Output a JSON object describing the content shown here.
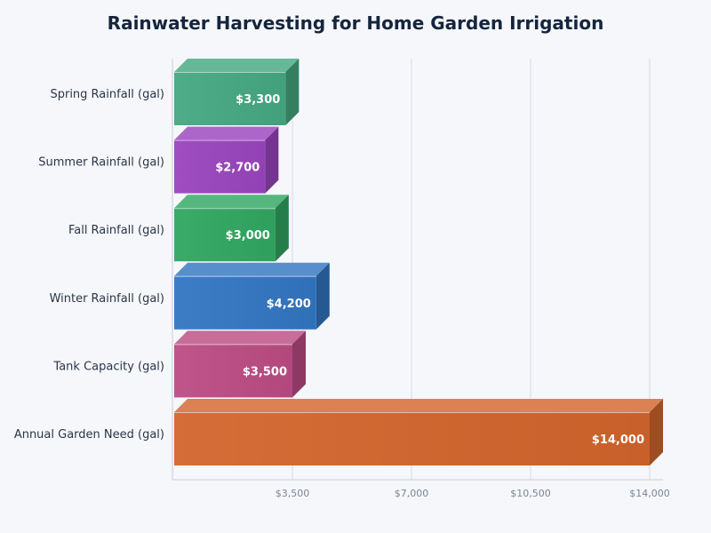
{
  "chart_data": {
    "type": "bar",
    "orientation": "horizontal",
    "style": "3d",
    "title": "Rainwater Harvesting for Home Garden Irrigation",
    "xlabel": "",
    "ylabel": "",
    "categories": [
      "Spring Rainfall (gal)",
      "Summer Rainfall (gal)",
      "Fall Rainfall (gal)",
      "Winter Rainfall (gal)",
      "Tank Capacity (gal)",
      "Annual Garden Need (gal)"
    ],
    "values": [
      3300,
      2700,
      3000,
      4200,
      3500,
      14000
    ],
    "value_labels": [
      "$3,300",
      "$2,700",
      "$3,000",
      "$4,200",
      "$3,500",
      "$14,000"
    ],
    "xlim": [
      0,
      14000
    ],
    "x_ticks": [
      3500,
      7000,
      10500,
      14000
    ],
    "x_tick_labels": [
      "$3,500",
      "$7,000",
      "$10,500",
      "$14,000"
    ],
    "grid": true,
    "legend": "none",
    "colors": [
      "#45a882",
      "#9a45be",
      "#31a762",
      "#3276c2",
      "#bc4c84",
      "#d3652d"
    ]
  }
}
